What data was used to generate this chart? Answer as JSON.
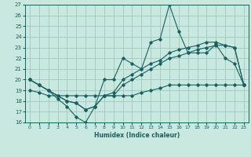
{
  "bg_color": "#c8e8e0",
  "grid_color": "#a0c8c0",
  "line_color": "#1a6060",
  "xlim": [
    -0.5,
    23.5
  ],
  "ylim": [
    16,
    27
  ],
  "xticks": [
    0,
    1,
    2,
    3,
    4,
    5,
    6,
    7,
    8,
    9,
    10,
    11,
    12,
    13,
    14,
    15,
    16,
    17,
    18,
    19,
    20,
    21,
    22,
    23
  ],
  "yticks": [
    16,
    17,
    18,
    19,
    20,
    21,
    22,
    23,
    24,
    25,
    26,
    27
  ],
  "xlabel": "Humidex (Indice chaleur)",
  "series": [
    {
      "x": [
        0,
        1,
        2,
        3,
        4,
        5,
        6,
        7,
        8,
        9,
        10,
        11,
        12,
        13,
        14,
        15,
        16,
        17,
        18,
        19,
        20,
        21,
        22,
        23
      ],
      "y": [
        20,
        19.5,
        19,
        18.2,
        17.5,
        16.5,
        16,
        17.5,
        20,
        20,
        22,
        21.5,
        21,
        23.5,
        23.8,
        27,
        24.5,
        22.5,
        22.5,
        22.5,
        23.3,
        22,
        21.5,
        19.5
      ]
    },
    {
      "x": [
        0,
        1,
        2,
        3,
        4,
        5,
        6,
        7,
        8,
        9,
        10,
        11,
        12,
        13,
        14,
        15,
        16,
        17,
        18,
        19,
        20,
        21,
        22,
        23
      ],
      "y": [
        20,
        19.5,
        19,
        18.5,
        18,
        17.8,
        17.2,
        17.5,
        18.5,
        18.8,
        20,
        20.5,
        21,
        21.5,
        21.8,
        22.5,
        22.8,
        23,
        23.2,
        23.5,
        23.5,
        23.2,
        23,
        19.5
      ]
    },
    {
      "x": [
        0,
        1,
        2,
        3,
        4,
        5,
        6,
        7,
        8,
        9,
        10,
        11,
        12,
        13,
        14,
        15,
        16,
        17,
        18,
        19,
        20,
        21,
        22,
        23
      ],
      "y": [
        20,
        19.5,
        19,
        18.5,
        18,
        17.8,
        17.2,
        17.5,
        18.5,
        18.5,
        19.5,
        20,
        20.5,
        21,
        21.5,
        22,
        22.2,
        22.5,
        22.8,
        23,
        23.2,
        23.2,
        23,
        19.5
      ]
    },
    {
      "x": [
        0,
        1,
        2,
        3,
        4,
        5,
        6,
        7,
        8,
        9,
        10,
        11,
        12,
        13,
        14,
        15,
        16,
        17,
        18,
        19,
        20,
        21,
        22,
        23
      ],
      "y": [
        19,
        18.8,
        18.5,
        18.5,
        18.5,
        18.5,
        18.5,
        18.5,
        18.5,
        18.5,
        18.5,
        18.5,
        18.8,
        19,
        19.2,
        19.5,
        19.5,
        19.5,
        19.5,
        19.5,
        19.5,
        19.5,
        19.5,
        19.5
      ]
    }
  ]
}
